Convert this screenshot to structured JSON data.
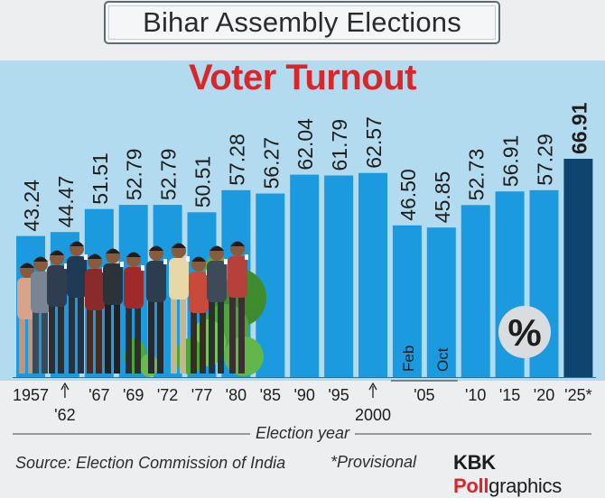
{
  "header": {
    "title": "Bihar Assembly Elections",
    "subtitle": "Voter Turnout"
  },
  "chart_data": {
    "type": "bar",
    "title": "Voter Turnout",
    "xlabel": "Election year",
    "ylabel": "",
    "unit_symbol": "%",
    "ylim": [
      0,
      70
    ],
    "categories": [
      "1957",
      "1962",
      "1967",
      "1969",
      "1972",
      "1977",
      "1980",
      "1985",
      "1990",
      "1995",
      "2000",
      "2005 Feb",
      "2005 Oct",
      "2010",
      "2015",
      "2020",
      "2025*"
    ],
    "values": [
      43.24,
      44.47,
      51.51,
      52.79,
      52.79,
      50.51,
      57.28,
      56.27,
      62.04,
      61.79,
      62.57,
      46.5,
      45.85,
      52.73,
      56.91,
      57.29,
      66.91
    ],
    "value_labels": [
      "43.24",
      "44.47",
      "51.51",
      "52.79",
      "52.79",
      "50.51",
      "57.28",
      "56.27",
      "62.04",
      "61.79",
      "62.57",
      "46.50",
      "45.85",
      "52.73",
      "56.91",
      "57.29",
      "66.91"
    ],
    "tick_labels": [
      "1957",
      "'62",
      "'67",
      "'69",
      "'72",
      "'77",
      "'80",
      "'85",
      "'90",
      "'95",
      "2000",
      "Feb",
      "Oct",
      "'10",
      "'15",
      "'20",
      "'25*"
    ],
    "group_label_2005": "'05",
    "highlight_index": 16,
    "colors": {
      "bar": "#1b9ae0",
      "bar_highlight": "#0d4470",
      "panel": "#b3dbef",
      "text": "#1d1d1d"
    }
  },
  "footer": {
    "source": "Source: Election Commission of India",
    "note": "*Provisional",
    "brand_part1": "KBK ",
    "brand_part2": "Poll",
    "brand_part3": "graphics"
  }
}
